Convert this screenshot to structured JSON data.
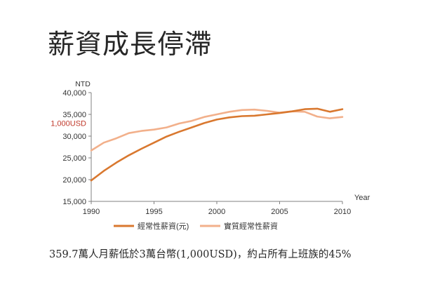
{
  "page": {
    "title": "薪資成長停滯",
    "caption": "359.7萬人月薪低於3萬台幣(1,000USD)，約占所有上班族的45%"
  },
  "chart_data": {
    "type": "line",
    "unit_label": "NTD",
    "xlabel": "Year",
    "ylabel": "",
    "xlim": [
      1990,
      2010
    ],
    "ylim": [
      15000,
      40000
    ],
    "x_ticks": [
      1990,
      1995,
      2000,
      2005,
      2010
    ],
    "y_ticks": [
      15000,
      20000,
      25000,
      30000,
      35000,
      40000
    ],
    "y_tick_labels": [
      "15,000",
      "20,000",
      "25,000",
      "30,000",
      "35,000",
      "40,000"
    ],
    "annotation": {
      "text": "1,000USD",
      "y": 33000,
      "color": "#c0392b"
    },
    "grid": false,
    "legend": "bottom",
    "x": [
      1990,
      1991,
      1992,
      1993,
      1994,
      1995,
      1996,
      1997,
      1998,
      1999,
      2000,
      2001,
      2002,
      2003,
      2004,
      2005,
      2006,
      2007,
      2008,
      2009,
      2010
    ],
    "series": [
      {
        "name": "經常性薪資(元)",
        "color": "#d9782f",
        "values": [
          19800,
          22000,
          23900,
          25600,
          27100,
          28500,
          29900,
          31000,
          32000,
          33000,
          33800,
          34300,
          34600,
          34700,
          35000,
          35300,
          35700,
          36200,
          36300,
          35600,
          36200
        ]
      },
      {
        "name": "實質經常性薪資",
        "color": "#f2b08b",
        "values": [
          26700,
          28500,
          29500,
          30700,
          31200,
          31500,
          32000,
          32900,
          33500,
          34400,
          35000,
          35600,
          36000,
          36100,
          35800,
          35400,
          35700,
          35600,
          34500,
          34100,
          34400
        ]
      }
    ]
  }
}
